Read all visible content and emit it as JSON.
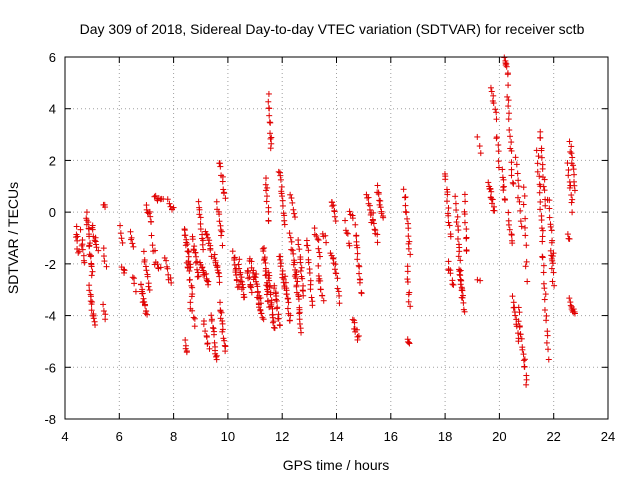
{
  "chart_data": {
    "type": "scatter",
    "title": "Day 309 of 2018, Sidereal Day-to-day VTEC variation (SDTVAR) for receiver sctb",
    "xlabel": "GPS time / hours",
    "ylabel": "SDTVAR / TECUs",
    "xlim": [
      4,
      24
    ],
    "ylim": [
      -8,
      6
    ],
    "x_ticks": [
      4,
      6,
      8,
      10,
      12,
      14,
      16,
      18,
      20,
      22,
      24
    ],
    "y_ticks": [
      -8,
      -6,
      -4,
      -2,
      0,
      2,
      4,
      6
    ],
    "grid": true,
    "marker": "+",
    "colors": {
      "points": "#e00000",
      "grid": "#a0a0a0",
      "axes": "#000000"
    },
    "note": "Approximate point clouds read from figure: each track is [x_start, x_end, y_start, y_end, point_count]",
    "series": [
      {
        "name": "SDTVAR",
        "tracks": [
          [
            4.4,
            4.5,
            -0.6,
            -1.6,
            8
          ],
          [
            4.6,
            4.7,
            -0.8,
            -2.0,
            8
          ],
          [
            4.8,
            5.0,
            0.0,
            -2.4,
            20
          ],
          [
            4.9,
            5.1,
            -2.9,
            -4.4,
            14
          ],
          [
            5.0,
            5.2,
            -0.5,
            -1.6,
            10
          ],
          [
            5.4,
            5.5,
            0.3,
            0.1,
            3
          ],
          [
            5.4,
            5.5,
            -1.3,
            -2.2,
            4
          ],
          [
            5.4,
            5.5,
            -3.5,
            -4.1,
            4
          ],
          [
            6.0,
            6.1,
            -0.6,
            -1.2,
            4
          ],
          [
            6.1,
            6.2,
            -2.0,
            -2.4,
            4
          ],
          [
            6.4,
            6.5,
            -0.8,
            -1.4,
            5
          ],
          [
            6.5,
            6.6,
            -2.4,
            -3.0,
            4
          ],
          [
            6.8,
            7.0,
            -2.8,
            -4.0,
            16
          ],
          [
            6.9,
            7.1,
            -1.6,
            -3.0,
            10
          ],
          [
            7.0,
            7.2,
            0.3,
            -0.4,
            8
          ],
          [
            7.2,
            7.3,
            -1.0,
            -1.6,
            4
          ],
          [
            7.3,
            7.5,
            -2.0,
            -2.2,
            6
          ],
          [
            7.3,
            7.6,
            0.7,
            0.4,
            8
          ],
          [
            7.7,
            7.9,
            -1.8,
            -2.8,
            8
          ],
          [
            7.8,
            8.0,
            0.4,
            0.1,
            6
          ],
          [
            8.4,
            8.5,
            -5.0,
            -5.5,
            5
          ],
          [
            8.4,
            8.6,
            -0.7,
            -2.1,
            16
          ],
          [
            8.5,
            8.7,
            -2.0,
            -3.2,
            10
          ],
          [
            8.6,
            8.8,
            -3.6,
            -4.3,
            6
          ],
          [
            8.7,
            8.9,
            -1.0,
            -2.5,
            14
          ],
          [
            8.9,
            9.1,
            0.4,
            -1.4,
            12
          ],
          [
            9.0,
            9.3,
            -2.0,
            -2.8,
            14
          ],
          [
            9.1,
            9.3,
            -4.2,
            -5.3,
            8
          ],
          [
            9.2,
            9.4,
            -0.7,
            -1.6,
            10
          ],
          [
            9.4,
            9.6,
            -4.0,
            -5.8,
            14
          ],
          [
            9.5,
            9.7,
            -1.7,
            -2.6,
            12
          ],
          [
            9.6,
            9.8,
            0.4,
            -1.2,
            10
          ],
          [
            9.7,
            9.9,
            2.0,
            0.5,
            10
          ],
          [
            9.7,
            9.9,
            -3.6,
            -5.3,
            14
          ],
          [
            10.2,
            10.4,
            -1.6,
            -3.0,
            14
          ],
          [
            10.4,
            10.6,
            -1.9,
            -3.3,
            14
          ],
          [
            10.7,
            10.9,
            -2.2,
            -3.1,
            10
          ],
          [
            10.8,
            11.0,
            -1.8,
            -2.6,
            8
          ],
          [
            11.0,
            11.2,
            -2.4,
            -3.5,
            12
          ],
          [
            11.1,
            11.3,
            -3.4,
            -4.2,
            10
          ],
          [
            11.3,
            11.5,
            -1.3,
            -3.6,
            20
          ],
          [
            11.4,
            11.5,
            1.3,
            -0.4,
            10
          ],
          [
            11.5,
            11.6,
            4.5,
            2.4,
            12
          ],
          [
            11.5,
            11.7,
            -2.4,
            -4.6,
            20
          ],
          [
            11.7,
            11.9,
            -2.8,
            -4.4,
            14
          ],
          [
            11.9,
            12.1,
            1.6,
            -0.4,
            14
          ],
          [
            11.9,
            12.1,
            -1.6,
            -3.0,
            12
          ],
          [
            12.1,
            12.3,
            -2.6,
            -4.2,
            14
          ],
          [
            12.3,
            12.5,
            -0.9,
            -2.5,
            12
          ],
          [
            12.3,
            12.5,
            0.6,
            -0.2,
            6
          ],
          [
            12.5,
            12.7,
            -2.2,
            -4.6,
            18
          ],
          [
            12.6,
            12.8,
            -1.2,
            -3.3,
            14
          ],
          [
            12.9,
            13.1,
            -1.0,
            -3.6,
            14
          ],
          [
            13.2,
            13.4,
            -0.6,
            -1.6,
            8
          ],
          [
            13.3,
            13.5,
            -2.2,
            -3.5,
            10
          ],
          [
            13.5,
            13.6,
            -0.8,
            -1.1,
            4
          ],
          [
            13.8,
            14.0,
            0.5,
            -0.3,
            8
          ],
          [
            13.8,
            14.0,
            -1.5,
            -2.3,
            8
          ],
          [
            14.0,
            14.1,
            -2.4,
            -3.5,
            6
          ],
          [
            14.3,
            14.5,
            -0.4,
            -1.3,
            6
          ],
          [
            14.5,
            14.6,
            0.1,
            -0.3,
            4
          ],
          [
            14.6,
            14.8,
            -4.2,
            -4.9,
            10
          ],
          [
            14.7,
            14.9,
            -0.6,
            -3.2,
            16
          ],
          [
            15.1,
            15.3,
            0.8,
            -0.3,
            8
          ],
          [
            15.3,
            15.5,
            0.0,
            -1.1,
            10
          ],
          [
            15.5,
            15.7,
            1.0,
            -0.3,
            12
          ],
          [
            16.5,
            16.7,
            0.9,
            -1.6,
            14
          ],
          [
            16.6,
            16.7,
            -2.2,
            -3.6,
            8
          ],
          [
            16.6,
            16.7,
            -4.8,
            -5.2,
            4
          ],
          [
            18.0,
            18.2,
            1.6,
            -1.0,
            14
          ],
          [
            18.1,
            18.3,
            -2.0,
            -2.8,
            8
          ],
          [
            18.4,
            18.6,
            0.5,
            -3.0,
            18
          ],
          [
            18.5,
            18.7,
            -2.2,
            -3.8,
            14
          ],
          [
            18.7,
            18.8,
            0.6,
            -1.6,
            10
          ],
          [
            19.2,
            19.3,
            2.8,
            2.3,
            3
          ],
          [
            19.2,
            19.3,
            -2.6,
            -2.7,
            2
          ],
          [
            19.6,
            19.8,
            1.2,
            0.0,
            14
          ],
          [
            19.7,
            19.9,
            4.9,
            3.6,
            8
          ],
          [
            19.9,
            20.0,
            3.0,
            1.8,
            6
          ],
          [
            20.1,
            20.2,
            1.6,
            0.4,
            8
          ],
          [
            20.2,
            20.3,
            6.0,
            5.4,
            8
          ],
          [
            20.3,
            20.5,
            4.8,
            1.0,
            16
          ],
          [
            20.3,
            20.5,
            -0.1,
            -1.2,
            8
          ],
          [
            20.5,
            20.7,
            -3.3,
            -5.0,
            12
          ],
          [
            20.6,
            20.8,
            2.1,
            -0.6,
            10
          ],
          [
            20.7,
            21.0,
            -3.8,
            -6.6,
            18
          ],
          [
            20.9,
            21.0,
            1.0,
            -2.6,
            10
          ],
          [
            21.4,
            21.6,
            2.3,
            -1.2,
            16
          ],
          [
            21.5,
            21.7,
            3.2,
            0.3,
            14
          ],
          [
            21.6,
            21.8,
            -1.6,
            -5.6,
            16
          ],
          [
            21.8,
            22.0,
            0.6,
            -2.0,
            12
          ],
          [
            21.9,
            22.0,
            -1.4,
            -2.8,
            8
          ],
          [
            22.5,
            22.7,
            1.8,
            0.1,
            10
          ],
          [
            22.6,
            22.8,
            2.8,
            0.9,
            12
          ],
          [
            22.6,
            22.8,
            -3.4,
            -4.0,
            10
          ],
          [
            22.5,
            22.6,
            -0.8,
            -1.0,
            3
          ]
        ]
      }
    ]
  }
}
